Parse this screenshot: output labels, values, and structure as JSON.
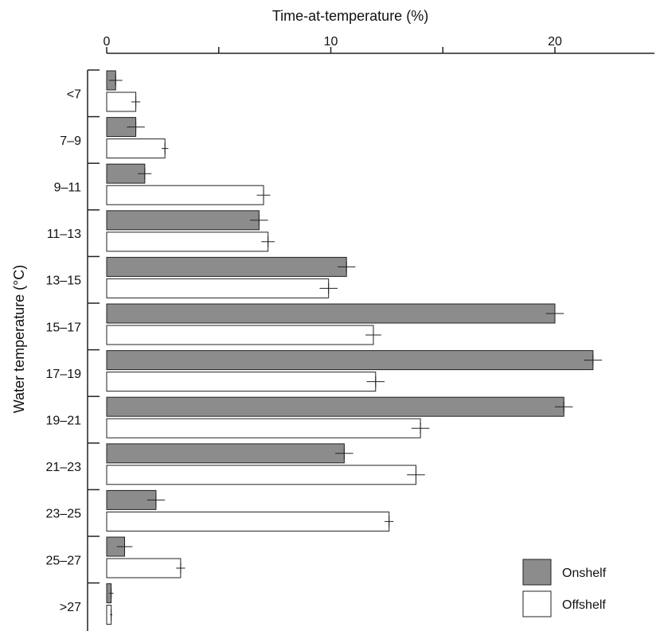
{
  "chart_data": {
    "type": "bar",
    "orientation": "horizontal",
    "xlabel": "Time-at-temperature (%)",
    "ylabel": "Water temperature (°C)",
    "x_ticks": [
      "0",
      "",
      "10",
      "",
      "20"
    ],
    "x_tick_values": [
      0,
      5,
      10,
      15,
      20
    ],
    "xlim": [
      0,
      24.5
    ],
    "categories": [
      "<7",
      "7–9",
      "9–11",
      "11–13",
      "13–15",
      "15–17",
      "17–19",
      "19–21",
      "21–23",
      "23–25",
      "25–27",
      ">27"
    ],
    "series": [
      {
        "name": "Onshelf",
        "color": "#8c8c8c",
        "values": [
          0.4,
          1.3,
          1.7,
          6.8,
          10.7,
          20.0,
          21.7,
          20.4,
          10.6,
          2.2,
          0.8,
          0.2
        ],
        "error": [
          0.3,
          0.4,
          0.3,
          0.4,
          0.4,
          0.4,
          0.4,
          0.4,
          0.4,
          0.4,
          0.35,
          0.1
        ]
      },
      {
        "name": "Offshelf",
        "color": "#ffffff",
        "values": [
          1.3,
          2.6,
          7.0,
          7.2,
          9.9,
          11.9,
          12.0,
          14.0,
          13.8,
          12.6,
          3.3,
          0.2
        ],
        "error": [
          0.2,
          0.15,
          0.3,
          0.3,
          0.4,
          0.35,
          0.4,
          0.4,
          0.4,
          0.2,
          0.2,
          0.05
        ]
      }
    ],
    "legend_position": "bottom-right"
  }
}
